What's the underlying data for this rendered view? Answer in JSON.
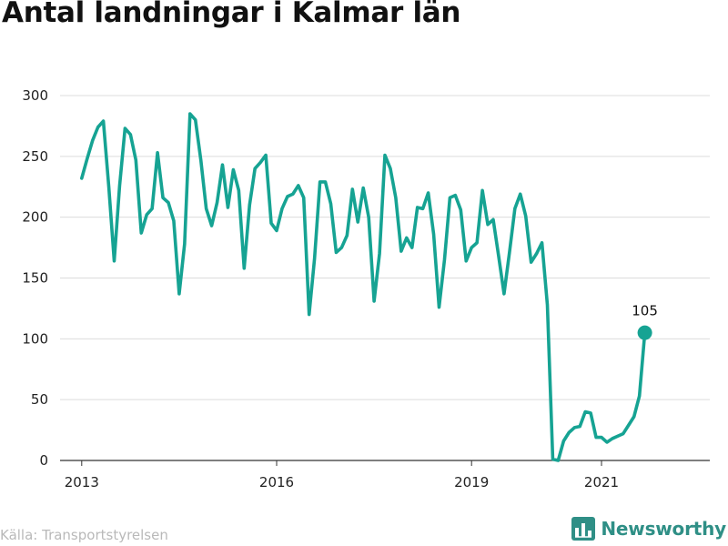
{
  "chart_data": {
    "type": "line",
    "title": "Antal landningar i Kalmar län",
    "x_tick_labels": [
      "2013",
      "2016",
      "2019",
      "2021"
    ],
    "x_tick_months": [
      "2013-01",
      "2016-01",
      "2019-01",
      "2021-01"
    ],
    "y_ticks": [
      0,
      50,
      100,
      150,
      200,
      250,
      300
    ],
    "ylim": [
      0,
      300
    ],
    "xlim": [
      "2012-09",
      "2022-09"
    ],
    "grid": true,
    "series": [
      {
        "color": "#16a393",
        "months": [
          "2013-01",
          "2013-02",
          "2013-03",
          "2013-04",
          "2013-05",
          "2013-06",
          "2013-07",
          "2013-08",
          "2013-09",
          "2013-10",
          "2013-11",
          "2013-12",
          "2014-01",
          "2014-02",
          "2014-03",
          "2014-04",
          "2014-05",
          "2014-06",
          "2014-07",
          "2014-08",
          "2014-09",
          "2014-10",
          "2014-11",
          "2014-12",
          "2015-01",
          "2015-02",
          "2015-03",
          "2015-04",
          "2015-05",
          "2015-06",
          "2015-07",
          "2015-08",
          "2015-09",
          "2015-10",
          "2015-11",
          "2015-12",
          "2016-01",
          "2016-02",
          "2016-03",
          "2016-04",
          "2016-05",
          "2016-06",
          "2016-07",
          "2016-08",
          "2016-09",
          "2016-10",
          "2016-11",
          "2016-12",
          "2017-01",
          "2017-02",
          "2017-03",
          "2017-04",
          "2017-05",
          "2017-06",
          "2017-07",
          "2017-08",
          "2017-09",
          "2017-10",
          "2017-11",
          "2017-12",
          "2018-01",
          "2018-02",
          "2018-03",
          "2018-04",
          "2018-05",
          "2018-06",
          "2018-07",
          "2018-08",
          "2018-09",
          "2018-10",
          "2018-11",
          "2018-12",
          "2019-01",
          "2019-02",
          "2019-03",
          "2019-04",
          "2019-05",
          "2019-06",
          "2019-07",
          "2019-08",
          "2019-09",
          "2019-10",
          "2019-11",
          "2019-12",
          "2020-01",
          "2020-02",
          "2020-03",
          "2020-04",
          "2020-05",
          "2020-06",
          "2020-07",
          "2020-08",
          "2020-09",
          "2020-10",
          "2020-11",
          "2020-12",
          "2021-01",
          "2021-02",
          "2021-03",
          "2021-04",
          "2021-05",
          "2021-06",
          "2021-07",
          "2021-08",
          "2021-09"
        ],
        "values": [
          232,
          248,
          263,
          274,
          279,
          225,
          164,
          226,
          273,
          268,
          247,
          187,
          202,
          207,
          253,
          216,
          212,
          197,
          137,
          178,
          285,
          280,
          247,
          207,
          193,
          212,
          243,
          208,
          239,
          222,
          158,
          210,
          240,
          245,
          251,
          195,
          189,
          207,
          217,
          219,
          226,
          216,
          120,
          166,
          229,
          229,
          211,
          171,
          175,
          185,
          223,
          196,
          224,
          200,
          131,
          170,
          251,
          240,
          216,
          172,
          183,
          175,
          208,
          207,
          220,
          186,
          126,
          165,
          216,
          218,
          206,
          164,
          175,
          179,
          222,
          194,
          198,
          168,
          137,
          171,
          207,
          219,
          201,
          163,
          170,
          179,
          128,
          1,
          0,
          16,
          23,
          27,
          28,
          40,
          39,
          19,
          19,
          15,
          18,
          20,
          22,
          29,
          36,
          53,
          105
        ],
        "end_label": "105"
      }
    ]
  },
  "footer": {
    "source": "Källa: Transportstyrelsen",
    "brand": "Newsworthy"
  }
}
